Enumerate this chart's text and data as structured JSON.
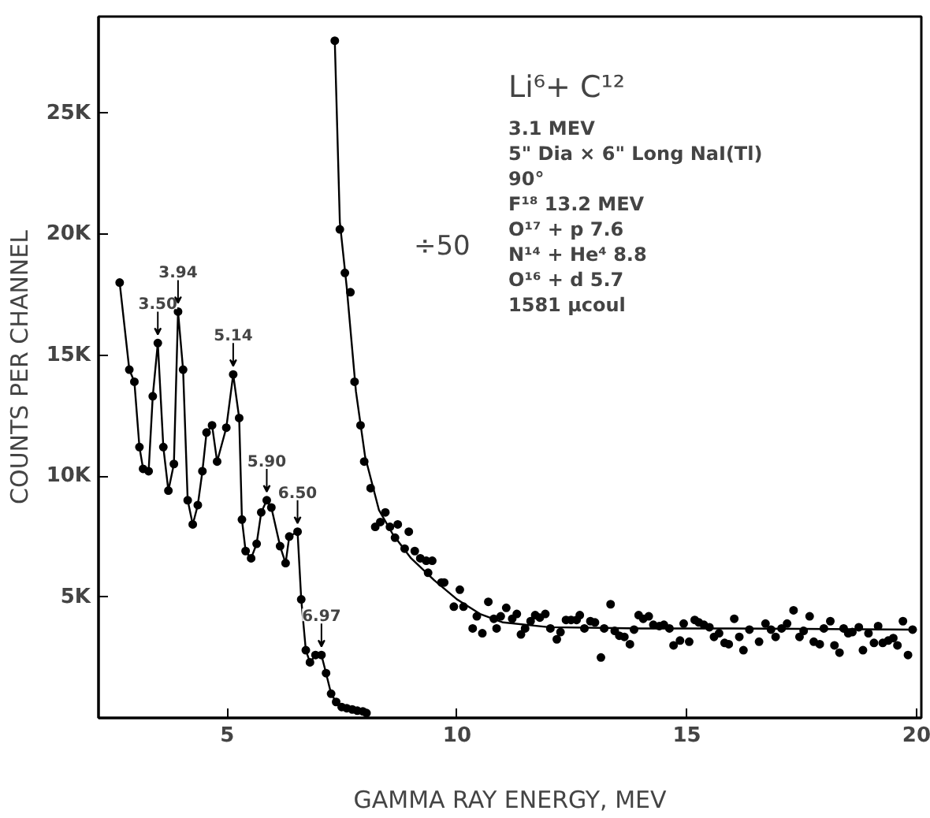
{
  "chart_data": {
    "type": "line",
    "xlabel": "GAMMA RAY ENERGY, MEV",
    "ylabel": "COUNTS PER CHANNEL",
    "xlim": [
      2.2,
      20.1
    ],
    "ylim": [
      0,
      29
    ],
    "xticks": [
      5,
      10,
      15,
      20
    ],
    "yticks": [
      {
        "value": 5,
        "label": "5K"
      },
      {
        "value": 10,
        "label": "10K"
      },
      {
        "value": 15,
        "label": "15K"
      },
      {
        "value": 20,
        "label": "20K"
      },
      {
        "value": 25,
        "label": "25K"
      }
    ],
    "grid": false,
    "line_style": "solid",
    "series": [
      {
        "marker": "circle",
        "color": "#000000",
        "x": [
          2.66,
          2.87,
          2.98,
          3.09,
          3.17,
          3.29,
          3.38,
          3.49,
          3.61,
          3.72,
          3.84,
          3.93,
          4.04,
          4.14,
          4.25,
          4.36,
          4.46,
          4.55,
          4.67,
          4.78,
          4.98,
          5.13,
          5.26,
          5.32,
          5.4,
          5.52,
          5.64,
          5.74,
          5.86,
          5.96,
          6.15,
          6.27,
          6.35,
          6.53,
          6.61,
          6.71,
          6.8,
          6.92,
          7.05,
          7.15,
          7.26,
          7.37,
          7.49,
          7.6,
          7.72,
          7.83,
          7.95,
          8.03
        ],
        "values": [
          18.0,
          14.4,
          13.9,
          11.2,
          10.3,
          10.2,
          13.3,
          15.5,
          11.2,
          9.4,
          10.5,
          16.8,
          14.4,
          9.0,
          8.0,
          8.8,
          10.2,
          11.8,
          12.1,
          10.6,
          12.0,
          14.2,
          12.4,
          8.2,
          6.9,
          6.6,
          7.2,
          8.5,
          9.0,
          8.7,
          7.1,
          6.4,
          7.5,
          7.7,
          4.9,
          2.8,
          2.3,
          2.6,
          2.6,
          1.85,
          1.0,
          0.66,
          0.45,
          0.4,
          0.35,
          0.3,
          0.27,
          0.2
        ]
      },
      {
        "type": "scatter",
        "marker": "circle",
        "color": "#000000",
        "x": [
          7.34,
          7.45,
          7.56,
          7.68,
          7.77,
          7.9,
          7.98,
          8.12,
          8.22,
          8.33,
          8.44,
          8.54,
          8.65,
          8.71,
          8.86,
          8.95,
          9.08,
          9.2,
          9.33,
          9.37,
          9.46,
          9.66,
          9.72,
          9.93,
          10.06,
          10.14,
          10.34,
          10.43,
          10.55,
          10.68,
          10.8,
          10.86,
          10.95,
          11.07,
          11.2,
          11.3,
          11.39,
          11.48,
          11.6,
          11.7,
          11.8,
          11.92,
          12.03,
          12.17,
          12.25,
          12.37,
          12.48,
          12.6,
          12.67,
          12.77,
          12.9,
          13.0,
          13.13,
          13.2,
          13.34,
          13.43,
          13.53,
          13.64,
          13.76,
          13.85,
          13.95,
          14.05,
          14.17,
          14.27,
          14.4,
          14.5,
          14.62,
          14.71,
          14.85,
          14.93,
          15.05,
          15.17,
          15.26,
          15.37,
          15.49,
          15.59,
          15.7,
          15.82,
          15.91,
          16.03,
          16.14,
          16.23,
          16.36,
          16.57,
          16.71,
          16.83,
          16.93,
          17.06,
          17.18,
          17.32,
          17.45,
          17.54,
          17.67,
          17.76,
          17.89,
          17.98,
          18.12,
          18.21,
          18.32,
          18.41,
          18.51,
          18.6,
          18.74,
          18.83,
          18.95,
          19.07,
          19.16,
          19.26,
          19.38,
          19.49,
          19.58,
          19.7,
          19.81,
          19.91
        ],
        "values": [
          28.0,
          20.2,
          18.4,
          17.6,
          13.9,
          12.1,
          10.6,
          9.5,
          7.9,
          8.1,
          8.5,
          7.9,
          7.45,
          8.0,
          7.0,
          7.7,
          6.9,
          6.6,
          6.5,
          6.0,
          6.5,
          5.6,
          5.6,
          4.6,
          5.3,
          4.6,
          3.7,
          4.2,
          3.5,
          4.8,
          4.1,
          3.7,
          4.2,
          4.55,
          4.1,
          4.3,
          3.45,
          3.7,
          4.0,
          4.25,
          4.15,
          4.3,
          3.7,
          3.25,
          3.55,
          4.05,
          4.05,
          4.05,
          4.25,
          3.7,
          4.0,
          3.95,
          2.5,
          3.7,
          4.7,
          3.6,
          3.4,
          3.35,
          3.05,
          3.65,
          4.25,
          4.1,
          4.2,
          3.85,
          3.8,
          3.85,
          3.7,
          3.0,
          3.2,
          3.9,
          3.15,
          4.05,
          3.95,
          3.85,
          3.75,
          3.35,
          3.5,
          3.1,
          3.05,
          4.1,
          3.35,
          2.8,
          3.65,
          3.15,
          3.9,
          3.65,
          3.35,
          3.7,
          3.9,
          4.45,
          3.35,
          3.6,
          4.2,
          3.15,
          3.05,
          3.7,
          4.0,
          3.0,
          2.7,
          3.7,
          3.5,
          3.55,
          3.75,
          2.8,
          3.5,
          3.1,
          3.8,
          3.1,
          3.2,
          3.3,
          3.0,
          4.0,
          2.6,
          3.65
        ]
      },
      {
        "type": "line",
        "marker": "none",
        "color": "#000000",
        "x": [
          7.34,
          7.45,
          7.6,
          7.8,
          8.0,
          8.3,
          8.6,
          9.0,
          9.5,
          10.0,
          10.5,
          11.0,
          12.0,
          14.0,
          16.0,
          20.0
        ],
        "values": [
          28.0,
          20.5,
          17.8,
          13.5,
          10.8,
          8.6,
          7.6,
          6.6,
          5.7,
          4.9,
          4.3,
          3.95,
          3.75,
          3.7,
          3.7,
          3.65
        ]
      }
    ],
    "annotations": [
      {
        "text": "3.50",
        "x": 3.49,
        "y": 15.5
      },
      {
        "text": "3.94",
        "x": 3.93,
        "y": 16.8
      },
      {
        "text": "5.14",
        "x": 5.13,
        "y": 14.2
      },
      {
        "text": "5.90",
        "x": 5.86,
        "y": 9.0
      },
      {
        "text": "6.50",
        "x": 6.53,
        "y": 7.7
      },
      {
        "text": "6.97",
        "x": 7.05,
        "y": 2.6
      },
      "Li⁶+ C¹²",
      "3.1  MEV",
      "5\" Dia × 6\" Long NaI(Tl)",
      "90°",
      "F¹⁸            13.2 MEV",
      "O¹⁷  + p       7.6",
      "N¹⁴  + He⁴   8.8",
      "O¹⁶  + d       5.7",
      "1581      μcoul",
      "÷50"
    ]
  }
}
